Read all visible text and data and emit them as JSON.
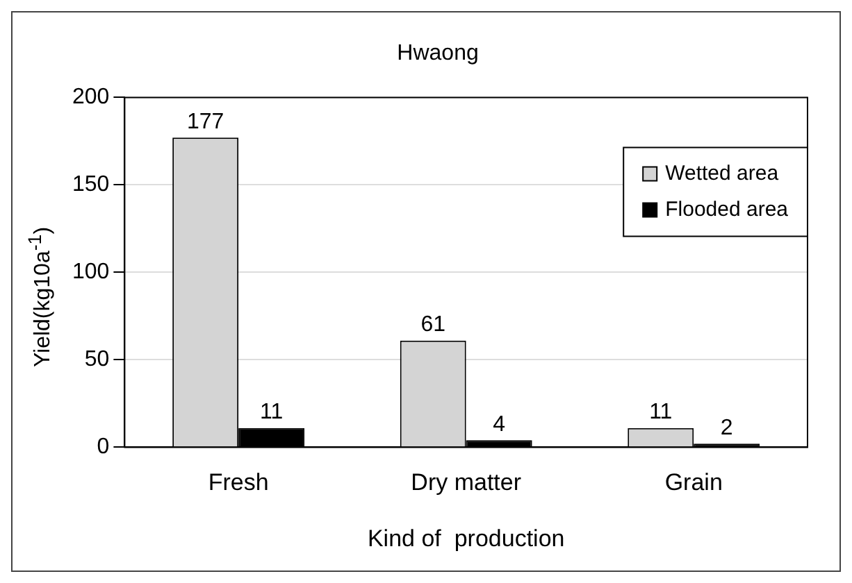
{
  "chart_data": {
    "type": "bar",
    "title": "Hwaong",
    "xlabel": "Kind of  production",
    "ylabel": "Yield(kg10a$^{-1}$)",
    "categories": [
      "Fresh",
      "Dry matter",
      "Grain"
    ],
    "series": [
      {
        "name": "Wetted area",
        "color": "#d4d4d4",
        "values": [
          177,
          61,
          11
        ]
      },
      {
        "name": "Flooded area",
        "color": "#000000",
        "values": [
          11,
          4,
          2
        ]
      }
    ],
    "ylim": [
      0,
      200
    ],
    "yticks": [
      0,
      50,
      100,
      150,
      200
    ],
    "grid": "y",
    "legend": "top right",
    "data_labels": true
  }
}
